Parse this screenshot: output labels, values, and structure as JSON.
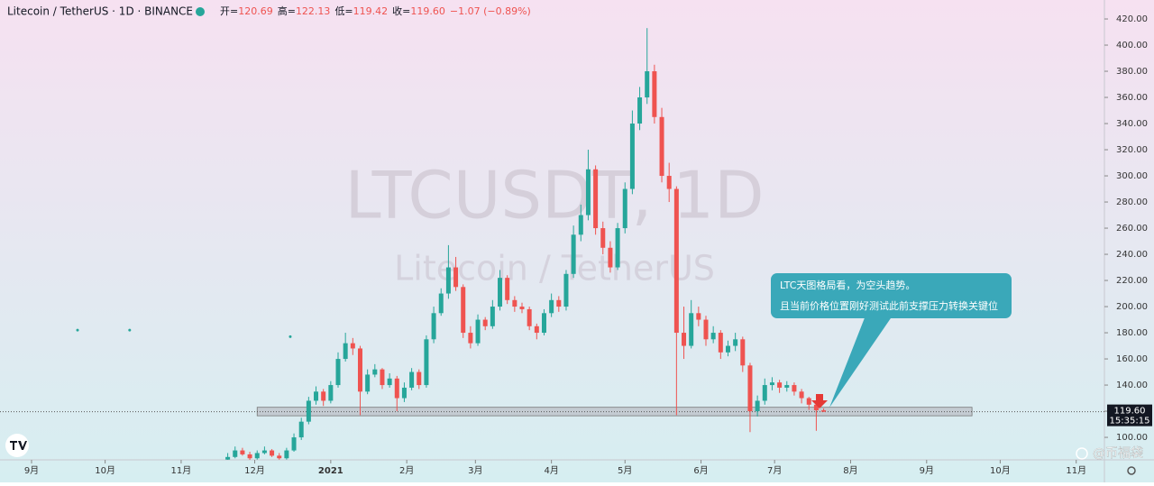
{
  "chart_data": {
    "type": "candlestick",
    "title": "Litecoin / TetherUS · 1D · BINANCE",
    "ohlc": [
      {
        "label": "开=",
        "value": 120.69
      },
      {
        "label": "高=",
        "value": 122.13
      },
      {
        "label": "低=",
        "value": 119.42
      },
      {
        "label": "收=",
        "value": 119.6,
        "value_label": "119.60"
      }
    ],
    "change": "−1.07 (−0.89%)",
    "watermark": "LTCUSDT, 1D",
    "watermark_sub": "Litecoin / TetherUS",
    "annotation": [
      "LTC天图格局看，为空头趋势。",
      "且当前价格位置刚好测试此前支撑压力转换关键位"
    ],
    "brand": "@币福袋",
    "up_color": "#26a69a",
    "down_color": "#ef5350",
    "x": [
      80,
      83,
      86,
      89,
      92,
      95,
      98,
      101,
      104,
      107,
      110,
      113,
      116,
      119,
      122,
      125,
      128,
      131,
      134,
      137,
      140,
      143,
      146,
      149,
      152,
      155,
      158,
      161,
      164,
      167,
      170,
      173,
      176,
      179,
      182,
      185,
      188,
      191,
      194,
      197,
      200,
      203,
      206,
      209,
      212,
      215,
      218,
      221,
      224,
      227,
      230,
      233,
      236,
      239,
      242,
      245,
      248,
      251,
      254,
      257,
      260,
      263,
      266,
      269,
      272,
      275,
      278,
      281,
      284,
      287,
      290,
      293,
      296,
      299,
      302,
      305,
      308,
      311,
      314,
      317,
      320,
      323
    ],
    "open": [
      83,
      85,
      90,
      87,
      84,
      88,
      90,
      86,
      84,
      90,
      100,
      112,
      128,
      135,
      128,
      140,
      160,
      172,
      168,
      135,
      148,
      152,
      140,
      145,
      130,
      138,
      150,
      140,
      175,
      195,
      210,
      230,
      215,
      180,
      172,
      190,
      185,
      200,
      222,
      205,
      200,
      198,
      185,
      180,
      195,
      205,
      200,
      225,
      255,
      270,
      305,
      260,
      245,
      230,
      260,
      290,
      340,
      360,
      380,
      345,
      300,
      290,
      180,
      170,
      195,
      190,
      175,
      180,
      165,
      170,
      175,
      155,
      120,
      128,
      140,
      142,
      138,
      140,
      135,
      130,
      125,
      120.69
    ],
    "high": [
      88,
      93,
      92,
      89,
      90,
      93,
      91,
      88,
      92,
      103,
      115,
      131,
      139,
      137,
      143,
      165,
      180,
      176,
      170,
      152,
      156,
      153,
      149,
      147,
      142,
      153,
      152,
      178,
      200,
      214,
      247,
      238,
      217,
      185,
      194,
      192,
      205,
      228,
      224,
      208,
      203,
      200,
      187,
      198,
      210,
      208,
      228,
      262,
      278,
      320,
      308,
      265,
      250,
      264,
      295,
      350,
      368,
      413,
      385,
      352,
      310,
      292,
      200,
      205,
      200,
      193,
      185,
      182,
      174,
      180,
      177,
      157,
      132,
      145,
      146,
      144,
      143,
      142,
      137,
      131,
      127,
      122.13
    ],
    "low": [
      81,
      84,
      86,
      82,
      83,
      87,
      85,
      83,
      83,
      89,
      98,
      110,
      125,
      124,
      126,
      138,
      158,
      163,
      117,
      133,
      146,
      137,
      138,
      120,
      127,
      136,
      137,
      138,
      172,
      193,
      206,
      212,
      176,
      168,
      170,
      182,
      183,
      197,
      202,
      196,
      195,
      182,
      175,
      178,
      192,
      196,
      197,
      222,
      250,
      266,
      255,
      240,
      226,
      228,
      256,
      286,
      335,
      355,
      340,
      295,
      280,
      117,
      160,
      168,
      185,
      170,
      172,
      160,
      162,
      166,
      150,
      104,
      116,
      125,
      136,
      134,
      135,
      132,
      126,
      121,
      105,
      119.42
    ],
    "close": [
      85,
      90,
      87,
      84,
      88,
      90,
      86,
      84,
      90,
      100,
      112,
      128,
      135,
      128,
      140,
      160,
      172,
      168,
      135,
      148,
      152,
      140,
      145,
      130,
      138,
      150,
      140,
      175,
      195,
      210,
      230,
      215,
      180,
      172,
      190,
      185,
      200,
      222,
      205,
      200,
      198,
      185,
      180,
      195,
      205,
      200,
      225,
      255,
      270,
      305,
      260,
      245,
      230,
      260,
      290,
      340,
      360,
      380,
      345,
      300,
      290,
      180,
      170,
      195,
      190,
      175,
      180,
      165,
      170,
      175,
      155,
      120,
      128,
      140,
      142,
      138,
      140,
      135,
      130,
      125,
      120.7,
      119.6
    ],
    "dots": {
      "x": [
        18.75,
        40,
        105.5
      ],
      "y": [
        182,
        182,
        177
      ]
    },
    "zone": {
      "x": [
        92,
        383.5
      ],
      "y": [
        116.5,
        123
      ]
    },
    "last_price": {
      "value": 119.6,
      "label": "119.60"
    },
    "last_time": "15:35:15",
    "xlim": [
      -12.87,
      437.5
    ],
    "ylim": [
      82.8,
      434.5
    ],
    "xticks": [
      {
        "value": 0,
        "label": "9月"
      },
      {
        "value": 30,
        "label": "10月"
      },
      {
        "value": 61,
        "label": "11月"
      },
      {
        "value": 91,
        "label": "12月"
      },
      {
        "value": 122,
        "label": "2021"
      },
      {
        "value": 153,
        "label": "2月"
      },
      {
        "value": 181,
        "label": "3月"
      },
      {
        "value": 212,
        "label": "4月"
      },
      {
        "value": 242,
        "label": "5月"
      },
      {
        "value": 273,
        "label": "6月"
      },
      {
        "value": 303,
        "label": "7月"
      },
      {
        "value": 334,
        "label": "8月"
      },
      {
        "value": 365,
        "label": "9月"
      },
      {
        "value": 395,
        "label": "10月"
      },
      {
        "value": 426,
        "label": "11月"
      }
    ],
    "yticks": [
      {
        "value": 100,
        "label": "100.00"
      },
      {
        "value": 120,
        "label": "120.00"
      },
      {
        "value": 140,
        "label": "140.00"
      },
      {
        "value": 160,
        "label": "160.00"
      },
      {
        "value": 180,
        "label": "180.00"
      },
      {
        "value": 200,
        "label": "200.00"
      },
      {
        "value": 220,
        "label": "220.00"
      },
      {
        "value": 240,
        "label": "240.00"
      },
      {
        "value": 260,
        "label": "260.00"
      },
      {
        "value": 280,
        "label": "280.00"
      },
      {
        "value": 300,
        "label": "300.00"
      },
      {
        "value": 320,
        "label": "320.00"
      },
      {
        "value": 340,
        "label": "340.00"
      },
      {
        "value": 360,
        "label": "360.00"
      },
      {
        "value": 380,
        "label": "380.00"
      },
      {
        "value": 400,
        "label": "400.00"
      },
      {
        "value": 420,
        "label": "420.00"
      }
    ]
  }
}
